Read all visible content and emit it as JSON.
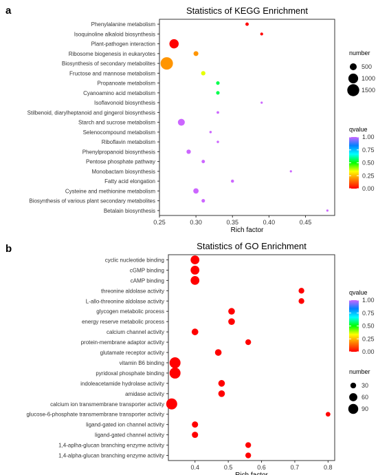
{
  "chart_data": [
    {
      "panel_label": "a",
      "type": "scatter",
      "title": "Statistics of KEGG Enrichment",
      "xlabel": "Rich factor",
      "ylabel": "",
      "xlim": [
        0.25,
        0.49
      ],
      "xticks": [
        0.25,
        0.3,
        0.35,
        0.4,
        0.45
      ],
      "xtick_labels": [
        "0.25",
        "0.30",
        "0.35",
        "0.40",
        "0.45"
      ],
      "grid": false,
      "categories": [
        "Phenylalanine metabolism",
        "Isoquinoline alkaloid biosynthesis",
        "Plant-pathogen interaction",
        "Ribosome biogenesis in eukaryotes",
        "Biosynthesis of secondary metabolites",
        "Fructose and mannose metabolism",
        "Propanoate metabolism",
        "Cyanoamino acid metabolism",
        "Isoflavonoid biosynthesis",
        "Stilbenoid, diarylheptanoid and gingerol biosynthesis",
        "Starch and sucrose metabolism",
        "Selenocompound metabolism",
        "Riboflavin metabolism",
        "Phenylpropanoid biosynthesis",
        "Pentose phosphate pathway",
        "Monobactam biosynthesis",
        "Fatty acid elongation",
        "Cysteine and methionine metabolism",
        "Biosynthesis of various plant secondary metabolites",
        "Betalain biosynthesis"
      ],
      "x": [
        0.37,
        0.39,
        0.27,
        0.3,
        0.26,
        0.31,
        0.33,
        0.33,
        0.39,
        0.33,
        0.28,
        0.32,
        0.33,
        0.29,
        0.31,
        0.43,
        0.35,
        0.3,
        0.31,
        0.48
      ],
      "qvalue": [
        0.0,
        0.0,
        0.0,
        0.2,
        0.2,
        0.35,
        0.55,
        0.55,
        1.0,
        1.0,
        1.0,
        1.0,
        1.0,
        1.0,
        1.0,
        1.0,
        1.0,
        1.0,
        1.0,
        1.0
      ],
      "number": [
        120,
        90,
        900,
        250,
        1600,
        200,
        130,
        130,
        50,
        70,
        500,
        60,
        60,
        200,
        120,
        40,
        100,
        300,
        130,
        20
      ],
      "size_legend": {
        "title": "number",
        "values": [
          500,
          1000,
          1500
        ],
        "labels": [
          "500",
          "1000",
          "1500"
        ]
      },
      "color_legend": {
        "title": "qvalue",
        "ticks": [
          0,
          0.25,
          0.5,
          0.75,
          1.0
        ],
        "labels": [
          "0.00",
          "0.25",
          "0.50",
          "0.75",
          "1.00"
        ]
      },
      "size_scale": {
        "unit": 500,
        "max": 1600
      }
    },
    {
      "panel_label": "b",
      "type": "scatter",
      "title": "Statistics of GO Enrichment",
      "xlabel": "Rich factor",
      "ylabel": "",
      "xlim": [
        0.32,
        0.82
      ],
      "xticks": [
        0.4,
        0.5,
        0.6,
        0.7,
        0.8
      ],
      "xtick_labels": [
        "0.4",
        "0.5",
        "0.6",
        "0.7",
        "0.8"
      ],
      "grid": false,
      "categories": [
        "cyclic nucleotide binding",
        "cGMP binding",
        "cAMP binding",
        "threonine aldolase activity",
        "L-allo-threonine aldolase activity",
        "glycogen metabolic process",
        "energy reserve metabolic process",
        "calcium channel activity",
        "protein-membrane adaptor activity",
        "glutamate receptor activity",
        "vitamin B6 binding",
        "pyridoxal phosphate binding",
        "indoleacetamide hydrolase activity",
        "amidase activity",
        "calcium ion transmembrane transporter activity",
        "glucose-6-phosphate transmembrane transporter activity",
        "ligand-gated ion channel activity",
        "ligand-gated channel activity",
        "1,4-aplha-glucan branching enzyme activity",
        "1,4-alpha-glucan branching enzyme activity"
      ],
      "x": [
        0.4,
        0.4,
        0.4,
        0.72,
        0.72,
        0.51,
        0.51,
        0.4,
        0.56,
        0.47,
        0.34,
        0.34,
        0.48,
        0.48,
        0.33,
        0.8,
        0.4,
        0.4,
        0.56,
        0.56
      ],
      "qvalue": [
        0.0,
        0.0,
        0.0,
        0.0,
        0.0,
        0.0,
        0.0,
        0.0,
        0.0,
        0.0,
        0.0,
        0.0,
        0.0,
        0.0,
        0.0,
        0.0,
        0.0,
        0.0,
        0.0,
        0.0
      ],
      "number": [
        70,
        70,
        70,
        30,
        30,
        40,
        40,
        40,
        30,
        40,
        110,
        110,
        40,
        40,
        110,
        20,
        35,
        35,
        30,
        30
      ],
      "size_legend": {
        "title": "number",
        "values": [
          30,
          60,
          90
        ],
        "labels": [
          "30",
          "60",
          "90"
        ]
      },
      "color_legend": {
        "title": "qvalue",
        "ticks": [
          0,
          0.25,
          0.5,
          0.75,
          1.0
        ],
        "labels": [
          "0.00",
          "0.25",
          "0.50",
          "0.75",
          "1.00"
        ]
      },
      "size_scale": {
        "unit": 30,
        "max": 110
      }
    }
  ],
  "colors": {
    "colorbar_stops": [
      "#ff0000",
      "#ff7a00",
      "#ffff00",
      "#00ff00",
      "#00ffff",
      "#0080ff",
      "#cc66ff"
    ]
  }
}
